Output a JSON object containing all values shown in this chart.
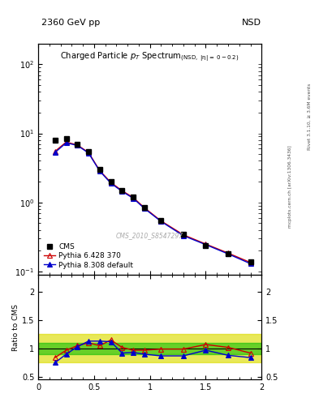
{
  "title_left": "2360 GeV pp",
  "title_right": "NSD",
  "plot_title": "Charged Particle p_{T} Spectrum",
  "plot_subtitle": "(NSD, |#eta| =  0 - 0.2)",
  "watermark": "CMS_2010_S8547297",
  "right_label_top": "Rivet 3.1.10, ≥ 3.6M events",
  "right_label_bot": "mcplots.cern.ch [arXiv:1306.3436]",
  "cms_x": [
    0.15,
    0.25,
    0.35,
    0.45,
    0.55,
    0.65,
    0.75,
    0.85,
    0.95,
    1.1,
    1.3,
    1.5,
    1.7,
    1.9
  ],
  "cms_y": [
    8.0,
    8.5,
    7.0,
    5.5,
    3.0,
    2.0,
    1.5,
    1.2,
    0.85,
    0.55,
    0.35,
    0.24,
    0.18,
    0.14
  ],
  "pythia6_x": [
    0.15,
    0.25,
    0.35,
    0.45,
    0.55,
    0.65,
    0.75,
    0.85,
    0.95,
    1.1,
    1.3,
    1.5,
    1.7,
    1.9
  ],
  "pythia6_y": [
    5.5,
    7.5,
    6.8,
    5.3,
    2.9,
    1.95,
    1.48,
    1.18,
    0.84,
    0.54,
    0.34,
    0.25,
    0.185,
    0.135
  ],
  "pythia8_x": [
    0.15,
    0.25,
    0.35,
    0.45,
    0.55,
    0.65,
    0.75,
    0.85,
    0.95,
    1.1,
    1.3,
    1.5,
    1.7,
    1.9
  ],
  "pythia8_y": [
    5.3,
    7.3,
    6.7,
    5.2,
    2.85,
    1.9,
    1.45,
    1.15,
    0.82,
    0.53,
    0.33,
    0.245,
    0.18,
    0.13
  ],
  "ratio6_x": [
    0.15,
    0.25,
    0.35,
    0.45,
    0.55,
    0.65,
    0.75,
    0.85,
    0.95,
    1.1,
    1.3,
    1.5,
    1.7,
    1.9
  ],
  "ratio6_y": [
    0.84,
    0.97,
    1.05,
    1.1,
    1.05,
    1.15,
    1.02,
    0.97,
    0.97,
    0.99,
    0.99,
    1.07,
    1.02,
    0.92
  ],
  "ratio8_x": [
    0.15,
    0.25,
    0.35,
    0.45,
    0.55,
    0.65,
    0.75,
    0.85,
    0.95,
    1.1,
    1.3,
    1.5,
    1.7,
    1.9
  ],
  "ratio8_y": [
    0.75,
    0.9,
    1.03,
    1.13,
    1.13,
    1.12,
    0.92,
    0.93,
    0.9,
    0.87,
    0.87,
    0.97,
    0.88,
    0.84
  ],
  "band_green_lo": 0.9,
  "band_green_hi": 1.1,
  "band_yellow_lo": 0.75,
  "band_yellow_hi": 1.25,
  "color_cms": "#000000",
  "color_pythia6": "#cc0000",
  "color_pythia8": "#0000cc",
  "color_green": "#00bb00",
  "color_yellow": "#dddd00",
  "xlim": [
    0.0,
    2.0
  ],
  "ylim_main": [
    0.09,
    200
  ],
  "ylim_ratio": [
    0.45,
    2.3
  ],
  "ylabel_ratio": "Ratio to CMS"
}
